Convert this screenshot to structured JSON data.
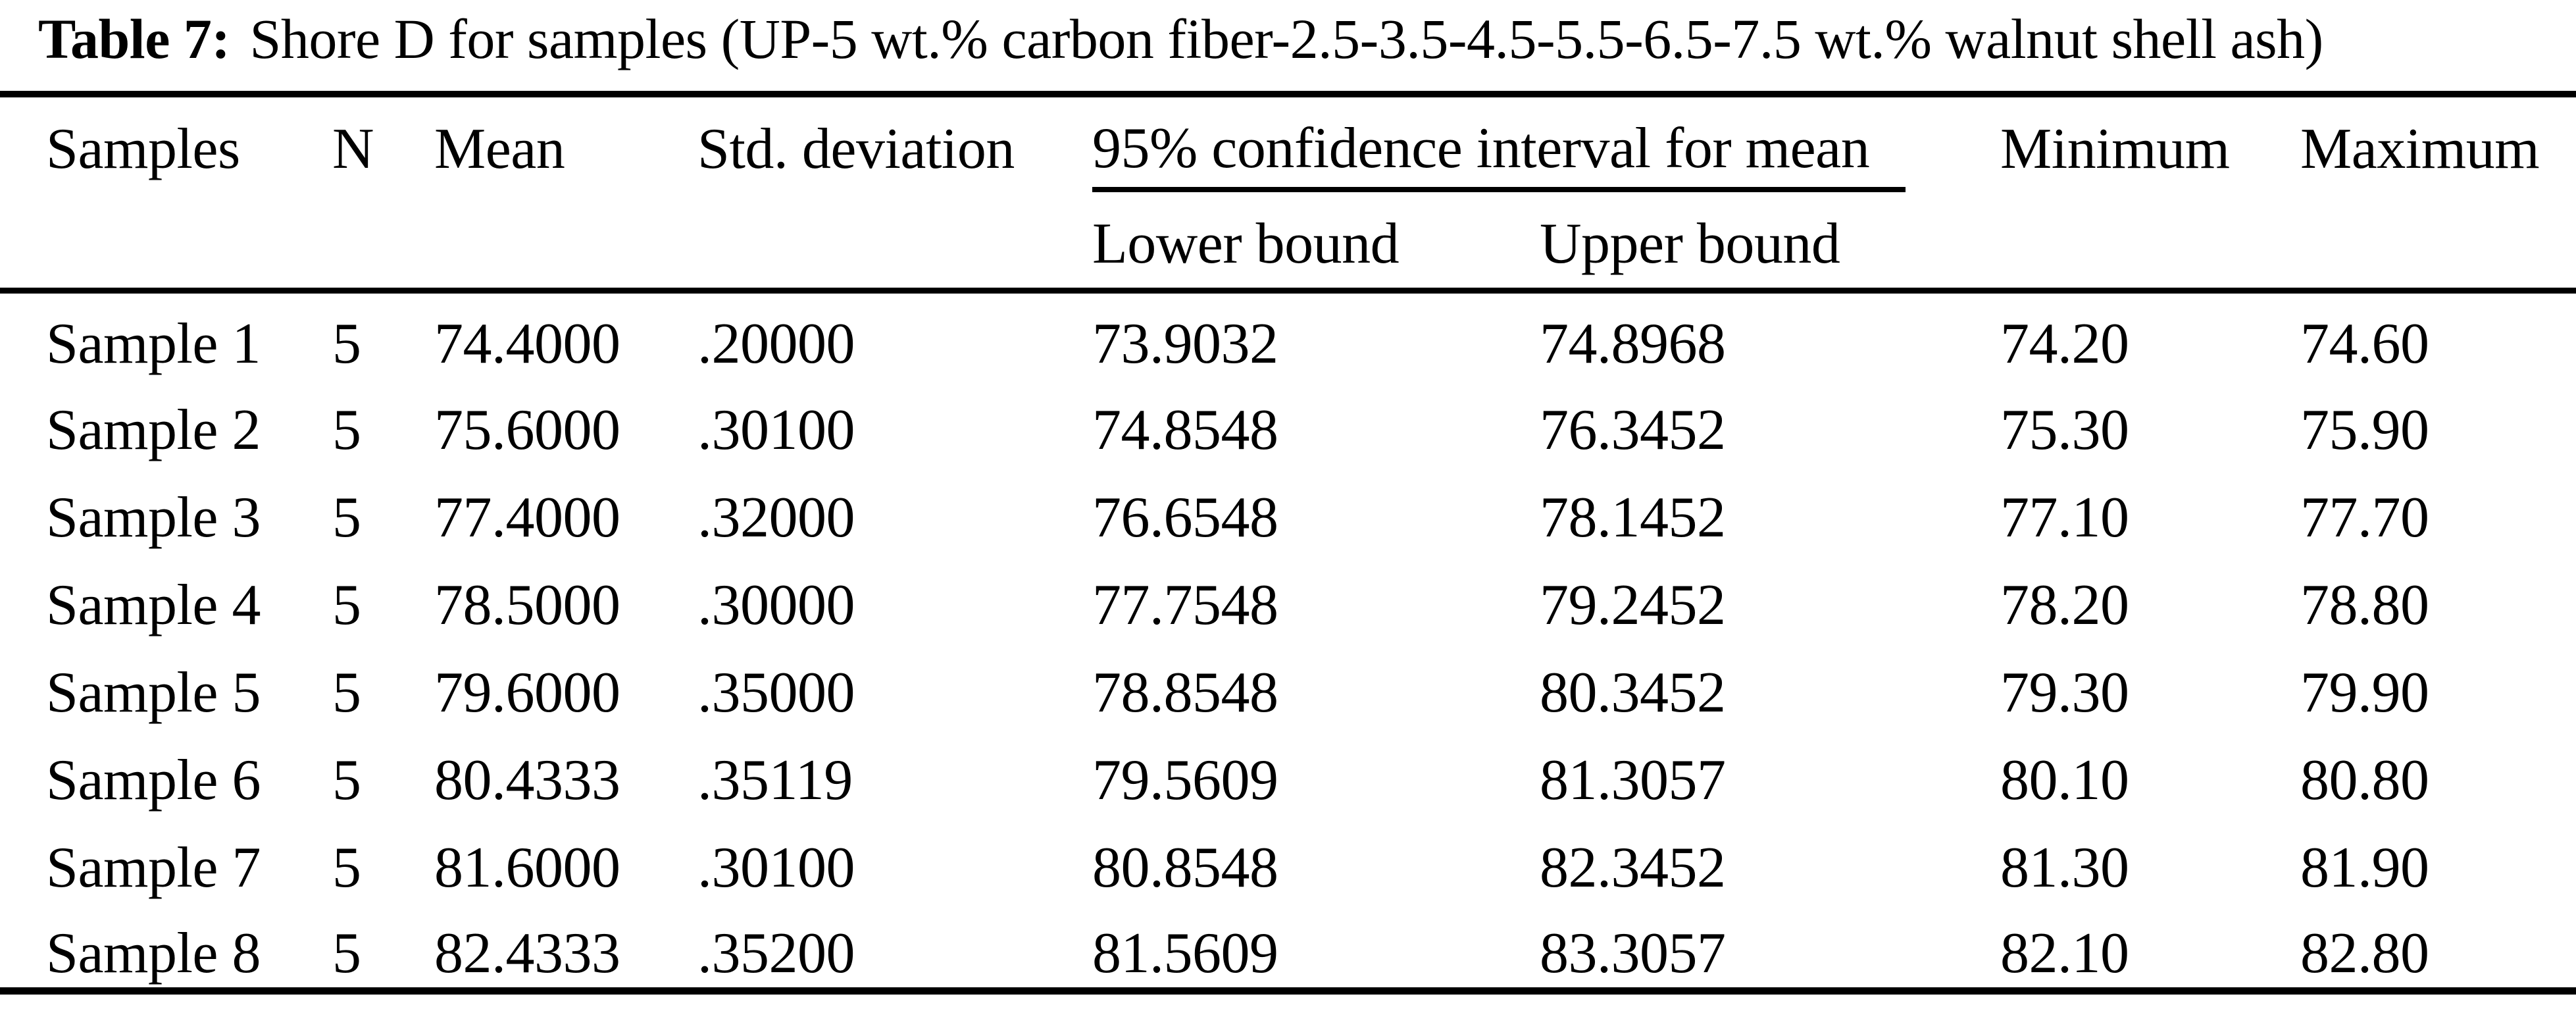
{
  "title": {
    "label": "Table 7:",
    "caption": "Shore D for samples (UP-5 wt.% carbon fiber-2.5-3.5-4.5-5.5-6.5-7.5 wt.% walnut shell ash)"
  },
  "colors": {
    "text": "#000000",
    "background": "#ffffff",
    "rule": "#000000"
  },
  "table": {
    "headers": {
      "samples": "Samples",
      "n": "N",
      "mean": "Mean",
      "std": "Std. deviation",
      "ci_group": "95% confidence interval for mean",
      "lower": "Lower bound",
      "upper": "Upper bound",
      "min": "Minimum",
      "max": "Maximum"
    },
    "rows": [
      {
        "sample": "Sample 1",
        "n": "5",
        "mean": "74.4000",
        "std": ".20000",
        "lower": "73.9032",
        "upper": "74.8968",
        "min": "74.20",
        "max": "74.60"
      },
      {
        "sample": "Sample 2",
        "n": "5",
        "mean": "75.6000",
        "std": ".30100",
        "lower": "74.8548",
        "upper": "76.3452",
        "min": "75.30",
        "max": "75.90"
      },
      {
        "sample": "Sample 3",
        "n": "5",
        "mean": "77.4000",
        "std": ".32000",
        "lower": "76.6548",
        "upper": "78.1452",
        "min": "77.10",
        "max": "77.70"
      },
      {
        "sample": "Sample 4",
        "n": "5",
        "mean": "78.5000",
        "std": ".30000",
        "lower": "77.7548",
        "upper": "79.2452",
        "min": "78.20",
        "max": "78.80"
      },
      {
        "sample": "Sample 5",
        "n": "5",
        "mean": "79.6000",
        "std": ".35000",
        "lower": "78.8548",
        "upper": "80.3452",
        "min": "79.30",
        "max": "79.90"
      },
      {
        "sample": "Sample 6",
        "n": "5",
        "mean": "80.4333",
        "std": ".35119",
        "lower": "79.5609",
        "upper": "81.3057",
        "min": "80.10",
        "max": "80.80"
      },
      {
        "sample": "Sample 7",
        "n": "5",
        "mean": "81.6000",
        "std": ".30100",
        "lower": "80.8548",
        "upper": "82.3452",
        "min": "81.30",
        "max": "81.90"
      },
      {
        "sample": "Sample 8",
        "n": "5",
        "mean": "82.4333",
        "std": ".35200",
        "lower": "81.5609",
        "upper": "83.3057",
        "min": "82.10",
        "max": "82.80"
      }
    ]
  }
}
